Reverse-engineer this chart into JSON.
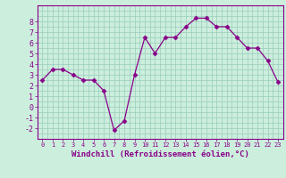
{
  "x": [
    0,
    1,
    2,
    3,
    4,
    5,
    6,
    7,
    8,
    9,
    10,
    11,
    12,
    13,
    14,
    15,
    16,
    17,
    18,
    19,
    20,
    21,
    22,
    23
  ],
  "y": [
    2.5,
    3.5,
    3.5,
    3.0,
    2.5,
    2.5,
    1.5,
    -2.2,
    -1.3,
    3.0,
    6.5,
    5.0,
    6.5,
    6.5,
    7.5,
    8.3,
    8.3,
    7.5,
    7.5,
    6.5,
    5.5,
    5.5,
    4.3,
    2.3
  ],
  "line_color": "#880088",
  "marker": "D",
  "marker_size": 2.5,
  "bg_color": "#cceedd",
  "grid_color": "#99ccbb",
  "xlabel": "Windchill (Refroidissement éolien,°C)",
  "xlabel_fontsize": 6.5,
  "ylabel_ticks": [
    -2,
    -1,
    0,
    1,
    2,
    3,
    4,
    5,
    6,
    7,
    8
  ],
  "xlim": [
    -0.5,
    23.5
  ],
  "ylim": [
    -2.8,
    9.2
  ],
  "xticks": [
    0,
    1,
    2,
    3,
    4,
    5,
    6,
    7,
    8,
    9,
    10,
    11,
    12,
    13,
    14,
    15,
    16,
    17,
    18,
    19,
    20,
    21,
    22,
    23
  ]
}
